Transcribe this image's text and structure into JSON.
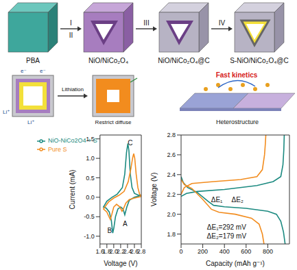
{
  "diagram": {
    "stages": [
      "PBA",
      "NiO/NiCo₂O₄",
      "NiO/NiCo₂O₄@C",
      "S-NiO/NiCo₂O₄@C"
    ],
    "steps": [
      [
        "I",
        "II"
      ],
      [
        "III"
      ],
      [
        "IV"
      ]
    ],
    "schematic": {
      "electron": "e⁻",
      "lithium": "Li⁺",
      "process": "Lithiation",
      "blocked": "Restrict diffuse",
      "kinetics": "Fast kinetics",
      "interface": "Heterostructure"
    }
  },
  "chart_data": [
    {
      "type": "line",
      "x_label": "Voltage (V)",
      "y_label": "Current (mA)",
      "xlim": [
        1.6,
        2.8
      ],
      "xticks": [
        1.6,
        1.8,
        {
          "value": 2,
          "label": "2.0"
        },
        2.2,
        2.4,
        2.6,
        2.8
      ],
      "ylim": [
        -1.2,
        1.6
      ],
      "yticks": [
        {
          "value": -1,
          "label": "-1.0"
        },
        -0.5,
        {
          "value": 0,
          "label": "0.0"
        },
        0.5,
        {
          "value": 1,
          "label": "1.0"
        },
        1.5
      ],
      "legend": "upper left",
      "series": [
        {
          "name": "NiO-NiCo2O4 + S",
          "color": "#1b8a80",
          "x": [
            2.8,
            2.6,
            2.45,
            2.38,
            2.32,
            2.27,
            2.2,
            2.12,
            2.05,
            2.0,
            1.97,
            1.93,
            1.87,
            1.78,
            1.7,
            1.7,
            1.8,
            1.95,
            2.1,
            2.25,
            2.32,
            2.37,
            2.41,
            2.44,
            2.48,
            2.53,
            2.6,
            2.7,
            2.8
          ],
          "values": [
            0.05,
            0.0,
            -0.08,
            -0.25,
            -0.45,
            -0.3,
            -0.25,
            -0.3,
            -0.5,
            -0.8,
            -0.92,
            -0.6,
            -0.38,
            -0.28,
            -0.25,
            -0.25,
            -0.1,
            0.0,
            0.08,
            0.25,
            0.6,
            1.15,
            1.38,
            1.2,
            0.6,
            0.25,
            0.1,
            0.06,
            0.05
          ]
        },
        {
          "name": "Pure S",
          "color": "#f28c1e",
          "x": [
            2.8,
            2.6,
            2.45,
            2.35,
            2.28,
            2.24,
            2.18,
            2.08,
            2.0,
            1.94,
            1.9,
            1.86,
            1.8,
            1.7,
            1.7,
            1.85,
            2.0,
            2.15,
            2.3,
            2.42,
            2.5,
            2.55,
            2.58,
            2.61,
            2.65,
            2.7,
            2.75,
            2.8
          ],
          "values": [
            0.02,
            -0.02,
            -0.06,
            -0.15,
            -0.3,
            -0.36,
            -0.25,
            -0.18,
            -0.25,
            -0.45,
            -0.57,
            -0.5,
            -0.38,
            -0.3,
            -0.3,
            -0.12,
            -0.02,
            0.05,
            0.15,
            0.4,
            0.75,
            1.02,
            1.12,
            1.0,
            0.6,
            0.25,
            0.08,
            0.02
          ]
        }
      ],
      "annotations": [
        {
          "text": "A",
          "x": 2.33,
          "y": -0.68
        },
        {
          "text": "B",
          "x": 1.88,
          "y": -0.85
        },
        {
          "text": "C",
          "x": 2.48,
          "y": 1.4
        }
      ]
    },
    {
      "type": "line",
      "x_label": "Capacity (mAh g⁻¹)",
      "y_label": "Voltage (V)",
      "xlim": [
        0,
        1000
      ],
      "xticks": [
        0,
        200,
        400,
        600,
        800
      ],
      "ylim": [
        1.7,
        2.8
      ],
      "yticks": [
        1.8,
        {
          "value": 2,
          "label": "2.0"
        },
        2.2,
        2.4,
        2.6,
        2.8
      ],
      "series": [
        {
          "name": "NiO-NiCo2O4 + S",
          "color": "#1b8a80",
          "x": [
            0,
            20,
            60,
            150,
            250,
            300,
            400,
            600,
            800,
            880,
            920,
            945,
            960,
            960,
            0,
            50,
            150,
            400,
            700,
            850,
            920,
            940,
            948,
            952
          ],
          "values": [
            2.38,
            2.32,
            2.27,
            2.22,
            2.13,
            2.09,
            2.075,
            2.06,
            2.03,
            2.0,
            1.93,
            1.82,
            1.7,
            null,
            2.18,
            2.21,
            2.23,
            2.25,
            2.29,
            2.33,
            2.38,
            2.5,
            2.65,
            2.8
          ]
        },
        {
          "name": "Pure S",
          "color": "#f28c1e",
          "x": [
            0,
            30,
            100,
            200,
            280,
            350,
            500,
            650,
            720,
            750,
            765,
            765,
            0,
            30,
            100,
            300,
            550,
            700,
            750,
            770,
            778,
            782
          ],
          "values": [
            2.35,
            2.3,
            2.26,
            2.15,
            2.05,
            2.02,
            2.0,
            1.96,
            1.9,
            1.8,
            1.7,
            null,
            2.2,
            2.27,
            2.31,
            2.33,
            2.35,
            2.38,
            2.45,
            2.6,
            2.72,
            2.8
          ]
        }
      ],
      "annotations": [
        {
          "text": "ΔE₁",
          "x": 330,
          "y": 2.15
        },
        {
          "text": "ΔE₂",
          "x": 520,
          "y": 2.15
        },
        {
          "text": "ΔE₁=292 mV",
          "x": 420,
          "y": 1.87
        },
        {
          "text": "ΔE₂=179 mV",
          "x": 420,
          "y": 1.78
        }
      ]
    }
  ]
}
